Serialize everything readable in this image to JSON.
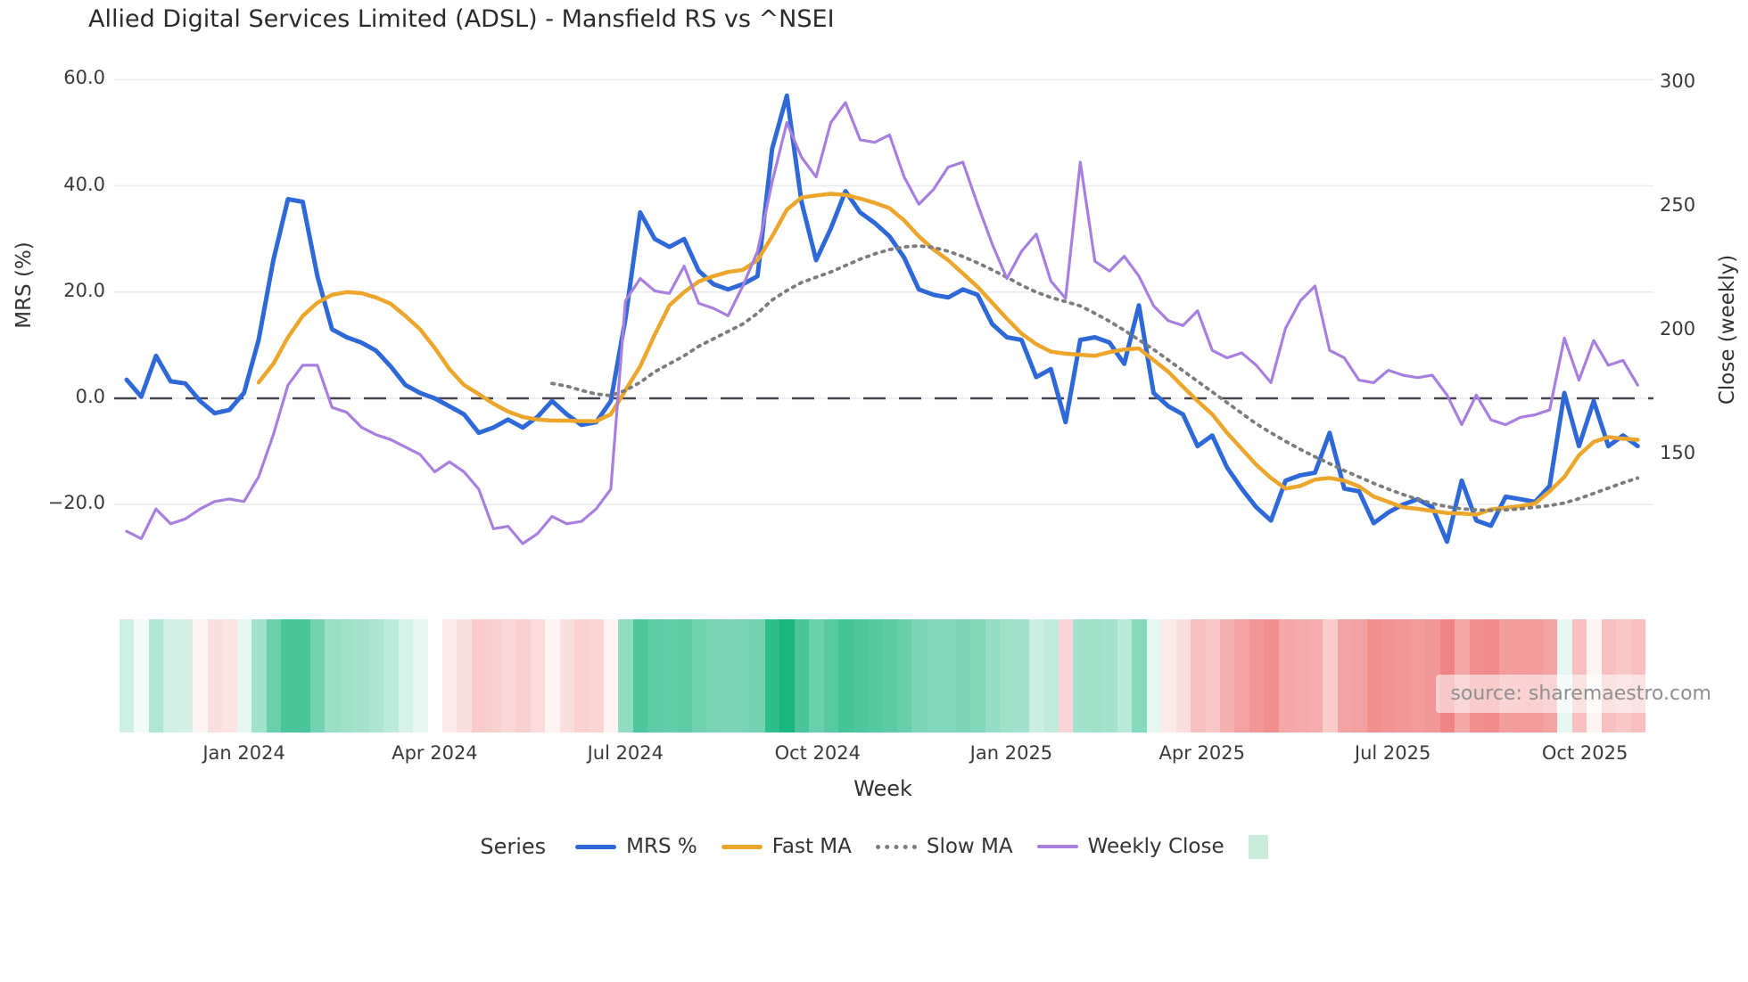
{
  "title": "Allied Digital Services Limited (ADSL) - Mansfield RS vs ^NSEI",
  "source_label": "source: sharemaestro.com",
  "colors": {
    "mrs": "#2f69d8",
    "fast_ma": "#eda62c",
    "slow_ma": "#7c7c7c",
    "weekly_close": "#a780de",
    "zero_line": "#44444e",
    "gridline": "#e9ebf3",
    "heat_green_max": "#19b67f",
    "heat_red_max": "#f08484",
    "legend_patch": "#c9ecdb"
  },
  "legend": {
    "title": "Series",
    "patch_label": ""
  },
  "chart_data": {
    "type": "line",
    "title": "Allied Digital Services Limited (ADSL) - Mansfield RS vs ^NSEI",
    "xlabel": "Week",
    "ylabel_left": "MRS (%)",
    "ylabel_right": "Close (weekly)",
    "x_unit": "weekly points, Nov 2023 - Oct 2025",
    "n_weeks": 104,
    "grid": true,
    "legend_position": "bottom",
    "left_ylim": [
      -30,
      63
    ],
    "right_ylim": [
      95,
      302
    ],
    "left_ticks": {
      "labels": [
        "60.0",
        "40.0",
        "20.0",
        "0.0",
        "−20.0"
      ],
      "values": [
        60,
        40,
        20,
        0,
        -20
      ]
    },
    "right_ticks": {
      "labels": [
        "300",
        "250",
        "200",
        "150"
      ],
      "values": [
        300,
        250,
        200,
        150
      ]
    },
    "x_ticks": {
      "labels": [
        "Jan 2024",
        "Apr 2024",
        "Jul 2024",
        "Oct 2024",
        "Jan 2025",
        "Apr 2025",
        "Jul 2025",
        "Oct 2025"
      ],
      "week_positions": [
        8,
        21,
        34,
        47.1,
        60.3,
        73.3,
        86.3,
        99.4
      ]
    },
    "series": [
      {
        "name": "MRS %",
        "axis": "left",
        "style": "solid",
        "width": 5,
        "color": "#2f69d8",
        "values": [
          3.5,
          0.3,
          8,
          3.2,
          2.8,
          -0.5,
          -2.8,
          -2.2,
          1,
          11,
          26,
          37.5,
          37,
          23,
          13,
          11.5,
          10.5,
          9,
          6,
          2.5,
          1,
          0,
          -1.5,
          -3,
          -6.5,
          -5.5,
          -4,
          -5.5,
          -3.5,
          -0.5,
          -3,
          -5,
          -4.5,
          -0.5,
          15,
          35,
          30,
          28.5,
          30,
          24,
          21.5,
          20.5,
          21.5,
          23,
          47,
          57,
          37,
          26,
          32,
          39,
          35,
          33,
          30.5,
          26.5,
          20.5,
          19.5,
          19,
          20.5,
          19.5,
          14,
          11.5,
          11,
          4,
          5.5,
          -4.5,
          11,
          11.5,
          10.5,
          6.5,
          17.5,
          1,
          -1.5,
          -3,
          -9,
          -7,
          -13,
          -17,
          -20.5,
          -23,
          -15.5,
          -14.5,
          -14,
          -6.5,
          -17,
          -17.5,
          -23.5,
          -21.5,
          -20,
          -19,
          -20.5,
          -27,
          -15.5,
          -23,
          -24,
          -18.5,
          -19,
          -19.5,
          -16.5,
          1,
          -9,
          -0.5,
          -9,
          -7,
          -9
        ]
      },
      {
        "name": "Fast MA",
        "axis": "left",
        "style": "solid",
        "width": 4.5,
        "color": "#eda62c",
        "values": [
          null,
          null,
          null,
          null,
          null,
          null,
          null,
          null,
          null,
          3,
          6.5,
          11.5,
          15.5,
          18,
          19.5,
          20,
          19.8,
          19,
          17.8,
          15.5,
          13,
          9.5,
          5.5,
          2.5,
          0.8,
          -1,
          -2.5,
          -3.5,
          -4,
          -4.2,
          -4.2,
          -4.3,
          -4.3,
          -3,
          1.5,
          6,
          12,
          17.5,
          20,
          22,
          23,
          23.8,
          24.2,
          26,
          30.5,
          35.5,
          37.8,
          38.2,
          38.5,
          38.3,
          37.6,
          36.8,
          35.8,
          33.5,
          30.5,
          28,
          26,
          23.5,
          21,
          18,
          15,
          12.2,
          10.2,
          8.8,
          8.4,
          8.2,
          8,
          8.7,
          9.2,
          9.4,
          7.2,
          5,
          2.2,
          -0.5,
          -3,
          -6.5,
          -9.5,
          -12.5,
          -15,
          -17,
          -16.5,
          -15.3,
          -15,
          -15.5,
          -16.6,
          -18.5,
          -19.5,
          -20.5,
          -20.8,
          -21.2,
          -21.6,
          -21.7,
          -21.9,
          -20.9,
          -20.6,
          -20.3,
          -19.8,
          -17.5,
          -14.8,
          -10.7,
          -8.2,
          -7.3,
          -7.6,
          -7.8
        ]
      },
      {
        "name": "Slow MA",
        "axis": "left",
        "style": "dotted",
        "width": 3.8,
        "color": "#7c7c7c",
        "values": [
          null,
          null,
          null,
          null,
          null,
          null,
          null,
          null,
          null,
          null,
          null,
          null,
          null,
          null,
          null,
          null,
          null,
          null,
          null,
          null,
          null,
          null,
          null,
          null,
          null,
          null,
          null,
          null,
          null,
          2.8,
          2.3,
          1.5,
          0.8,
          0.5,
          1.5,
          3,
          5,
          6.5,
          8,
          9.8,
          11.2,
          12.6,
          14,
          16,
          18.5,
          20.3,
          21.8,
          22.8,
          23.8,
          25,
          26.2,
          27.2,
          28,
          28.5,
          28.7,
          28.4,
          27.7,
          26.7,
          25.5,
          24.2,
          22.8,
          21.3,
          20,
          19,
          18.2,
          17.4,
          16,
          14.5,
          12.8,
          11,
          9.2,
          7.2,
          5.2,
          3.2,
          1.2,
          -0.8,
          -2.8,
          -4.8,
          -6.5,
          -8.1,
          -9.6,
          -11,
          -12.3,
          -13.6,
          -14.8,
          -16,
          -17.1,
          -18.1,
          -19,
          -19.8,
          -20.4,
          -20.8,
          -21,
          -21.1,
          -21,
          -20.8,
          -20.5,
          -20.2,
          -19.7,
          -18.9,
          -17.9,
          -16.9,
          -15.9,
          -15
        ]
      },
      {
        "name": "Weekly Close",
        "axis": "right",
        "style": "solid",
        "width": 3.2,
        "color": "#a780de",
        "values": [
          119,
          116,
          128,
          122,
          124,
          128,
          131,
          132,
          131,
          141,
          158,
          178,
          186,
          186,
          169,
          167,
          161,
          158,
          156,
          153,
          150,
          143,
          147,
          143,
          136,
          120,
          121,
          114,
          118,
          125,
          122,
          123,
          128,
          136,
          212,
          221,
          216,
          215,
          226,
          211,
          209,
          206,
          218,
          232,
          260,
          284,
          270,
          262,
          284,
          292,
          277,
          276,
          279,
          262,
          251,
          257,
          266,
          268,
          251,
          235,
          221,
          232,
          239,
          220,
          213,
          268,
          228,
          224,
          230,
          222,
          210,
          204,
          202,
          208,
          192,
          189,
          191,
          186,
          179,
          201,
          212,
          218,
          192,
          189,
          180,
          179,
          184,
          182,
          181,
          182,
          174,
          162,
          174,
          164,
          162,
          165,
          166,
          168,
          197,
          180,
          196,
          186,
          188,
          178
        ]
      }
    ],
    "heatmap_strip": {
      "description": "weekly color band below plot: green for positive MRS %, red for negative MRS %, intensity scales with magnitude",
      "derived_from": "MRS %",
      "green_saturation_at": 57,
      "red_saturation_at": -27
    }
  }
}
